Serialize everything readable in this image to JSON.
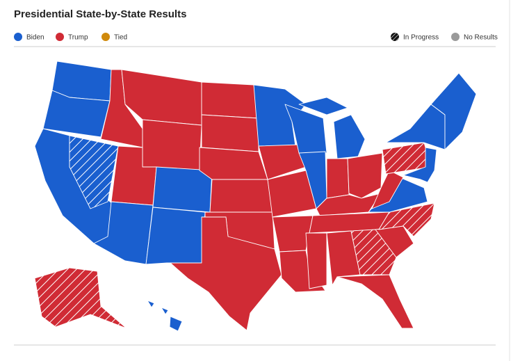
{
  "header": {
    "title": "Presidential State-by-State Results"
  },
  "legend": [
    {
      "label": "Biden",
      "color": "#1a5fcf"
    },
    {
      "label": "Trump",
      "color": "#d02b35"
    },
    {
      "label": "Tied",
      "color": "#d08a0c"
    },
    {
      "label": "In Progress",
      "color": "#111111"
    },
    {
      "label": "No Results",
      "color": "#9a9a9a"
    }
  ]
}
